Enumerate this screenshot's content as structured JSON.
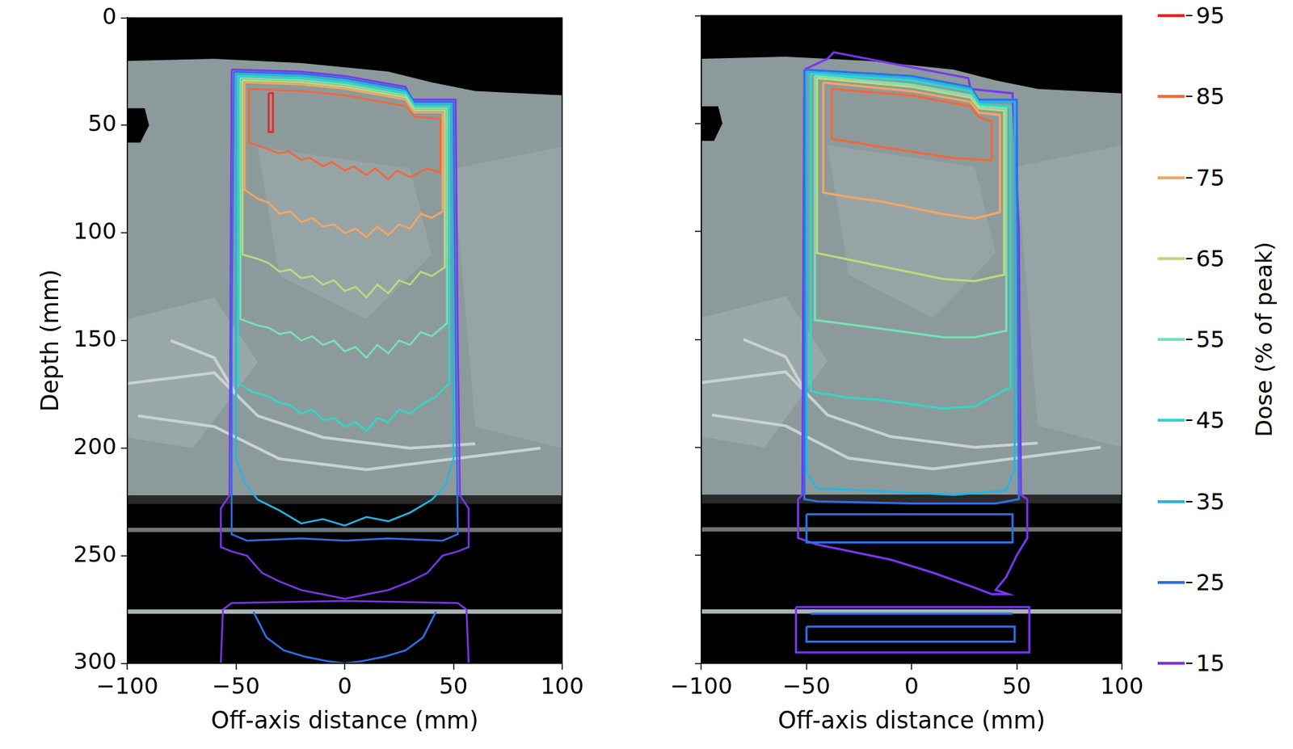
{
  "chart_data": [
    {
      "type": "line",
      "xlabel": "Off-axis distance (mm)",
      "ylabel": "Depth (mm)",
      "xlim": [
        -100,
        100
      ],
      "xticks": [
        {
          "value": -100,
          "label": "−100"
        },
        {
          "value": -50,
          "label": "−50"
        },
        0,
        50,
        100
      ],
      "ylim": [
        0,
        300
      ],
      "yticks": [
        0,
        50,
        100,
        150,
        200,
        250,
        300
      ],
      "grid": false,
      "series": [
        {
          "name": "95",
          "color": "#e8251f",
          "x": [
            -35,
            -33,
            -33,
            -35,
            -35
          ],
          "values": [
            35,
            35,
            53,
            53,
            35
          ]
        },
        {
          "name": "85",
          "color": "#f2673a",
          "x": [
            -44,
            -20,
            0,
            28,
            32,
            44,
            44,
            38,
            30,
            24,
            20,
            14,
            10,
            4,
            0,
            -6,
            -10,
            -16,
            -20,
            -26,
            -30,
            -38,
            -44,
            -44
          ],
          "values": [
            33,
            34,
            36,
            41,
            46,
            47,
            72,
            70,
            74,
            71,
            75,
            70,
            73,
            69,
            71,
            67,
            69,
            65,
            66,
            62,
            63,
            60,
            58,
            33
          ]
        },
        {
          "name": "75",
          "color": "#f9a55e",
          "x": [
            -46,
            -20,
            0,
            28,
            32,
            45,
            45,
            40,
            35,
            30,
            25,
            20,
            15,
            10,
            5,
            0,
            -5,
            -10,
            -15,
            -20,
            -25,
            -30,
            -35,
            -40,
            -46,
            -46
          ],
          "values": [
            30,
            31,
            33,
            38,
            44,
            44,
            90,
            93,
            91,
            98,
            96,
            101,
            97,
            102,
            98,
            100,
            96,
            97,
            93,
            95,
            90,
            91,
            86,
            84,
            80,
            30
          ]
        },
        {
          "name": "65",
          "color": "#bcdb7a",
          "x": [
            -47,
            -20,
            0,
            28,
            32,
            46,
            46,
            40,
            35,
            30,
            25,
            20,
            15,
            10,
            5,
            0,
            -5,
            -10,
            -15,
            -20,
            -25,
            -30,
            -35,
            -40,
            -47,
            -47
          ],
          "values": [
            29,
            30,
            32,
            37,
            43,
            43,
            116,
            120,
            118,
            124,
            122,
            128,
            124,
            130,
            125,
            127,
            122,
            124,
            120,
            121,
            117,
            118,
            114,
            112,
            110,
            29
          ]
        },
        {
          "name": "55",
          "color": "#76e3b3",
          "x": [
            -48,
            -20,
            0,
            28,
            32,
            47,
            47,
            40,
            35,
            30,
            25,
            20,
            15,
            10,
            5,
            0,
            -5,
            -10,
            -15,
            -20,
            -25,
            -30,
            -35,
            -40,
            -48,
            -48
          ],
          "values": [
            28,
            29,
            31,
            36,
            42,
            42,
            142,
            148,
            146,
            152,
            150,
            156,
            152,
            158,
            153,
            155,
            150,
            152,
            148,
            150,
            146,
            147,
            144,
            143,
            140,
            28
          ]
        },
        {
          "name": "45",
          "color": "#2ed8c8",
          "x": [
            -49,
            -20,
            0,
            28,
            32,
            48,
            48,
            42,
            35,
            30,
            25,
            20,
            15,
            10,
            5,
            0,
            -5,
            -10,
            -15,
            -20,
            -25,
            -30,
            -35,
            -42,
            -49,
            -49
          ],
          "values": [
            27,
            28,
            30,
            35,
            41,
            41,
            170,
            176,
            180,
            184,
            182,
            188,
            186,
            192,
            188,
            190,
            186,
            187,
            182,
            184,
            180,
            179,
            176,
            174,
            170,
            27
          ]
        },
        {
          "name": "35",
          "color": "#25b5e0",
          "x": [
            -50,
            -20,
            0,
            28,
            32,
            49,
            50,
            46,
            40,
            30,
            20,
            10,
            0,
            -10,
            -20,
            -30,
            -40,
            -46,
            -50,
            -50
          ],
          "values": [
            26,
            27,
            29,
            34,
            40,
            40,
            205,
            218,
            224,
            230,
            234,
            232,
            236,
            233,
            235,
            229,
            224,
            216,
            205,
            26
          ]
        },
        {
          "name": "25",
          "color": "#2f6fe6",
          "x": [
            -51,
            -20,
            0,
            28,
            32,
            50,
            51,
            52,
            45,
            20,
            0,
            -20,
            -45,
            -52,
            -52,
            -51,
            null,
            -42,
            -36,
            -28,
            -18,
            -8,
            0,
            8,
            18,
            28,
            36,
            42
          ],
          "values": [
            25,
            26,
            28,
            33,
            39,
            39,
            150,
            240,
            243,
            242,
            243,
            242,
            243,
            240,
            150,
            25,
            null,
            276,
            288,
            294,
            297,
            299,
            300,
            299,
            297,
            294,
            288,
            276
          ]
        },
        {
          "name": "15",
          "color": "#7a36f0",
          "x": [
            -52,
            -20,
            0,
            28,
            31,
            51,
            52,
            53,
            57,
            57,
            52,
            45,
            38,
            30,
            20,
            10,
            0,
            -10,
            -20,
            -30,
            -38,
            -45,
            -52,
            -57,
            -57,
            -53,
            -52,
            null,
            -57,
            -56,
            -52,
            0,
            52,
            56,
            57
          ],
          "values": [
            24,
            25,
            27,
            32,
            38,
            38,
            150,
            222,
            228,
            246,
            248,
            250,
            258,
            262,
            266,
            268,
            270,
            268,
            266,
            262,
            258,
            250,
            248,
            246,
            228,
            222,
            24,
            null,
            300,
            275,
            272,
            271,
            272,
            275,
            300
          ]
        }
      ]
    },
    {
      "type": "line",
      "xlabel": "Off-axis distance (mm)",
      "xlim": [
        -100,
        100
      ],
      "xticks": [
        {
          "value": -100,
          "label": "−100"
        },
        {
          "value": -50,
          "label": "−50"
        },
        0,
        50,
        100
      ],
      "ylim": [
        0,
        300
      ],
      "yticks": [
        0,
        50,
        100,
        150,
        200,
        250,
        300
      ],
      "tick_labels": "x",
      "grid": false,
      "series": [
        {
          "name": "85",
          "color": "#f2673a",
          "x": [
            -38,
            0,
            28,
            32,
            38,
            38,
            20,
            0,
            -20,
            -38,
            -38
          ],
          "values": [
            34,
            37,
            42,
            47,
            49,
            67,
            66,
            63,
            60,
            57,
            34
          ]
        },
        {
          "name": "75",
          "color": "#f9a55e",
          "x": [
            -42,
            0,
            28,
            32,
            42,
            42,
            30,
            15,
            0,
            -15,
            -30,
            -42,
            -42
          ],
          "values": [
            31,
            35,
            40,
            45,
            46,
            91,
            94,
            92,
            89,
            86,
            84,
            82,
            31
          ]
        },
        {
          "name": "65",
          "color": "#bcdb7a",
          "x": [
            -45,
            0,
            28,
            32,
            44,
            44,
            30,
            15,
            0,
            -15,
            -30,
            -45,
            -45
          ],
          "values": [
            29,
            33,
            38,
            43,
            44,
            120,
            123,
            122,
            119,
            116,
            113,
            110,
            29
          ]
        },
        {
          "name": "55",
          "color": "#76e3b3",
          "x": [
            -46,
            0,
            28,
            32,
            45,
            45,
            30,
            15,
            0,
            -15,
            -30,
            -46,
            -46
          ],
          "values": [
            28,
            32,
            37,
            42,
            43,
            146,
            149,
            149,
            147,
            145,
            143,
            141,
            28
          ]
        },
        {
          "name": "45",
          "color": "#2ed8c8",
          "x": [
            -48,
            0,
            28,
            32,
            47,
            47,
            30,
            15,
            0,
            -15,
            -30,
            -48,
            -48
          ],
          "values": [
            27,
            30,
            35,
            41,
            42,
            172,
            181,
            182,
            180,
            178,
            177,
            174,
            27
          ]
        },
        {
          "name": "35",
          "color": "#25b5e0",
          "x": [
            -50,
            0,
            28,
            32,
            49,
            49,
            45,
            20,
            0,
            -20,
            -45,
            -50,
            -50
          ],
          "values": [
            26,
            29,
            34,
            40,
            40,
            210,
            220,
            222,
            221,
            220,
            219,
            212,
            26
          ]
        },
        {
          "name": "25",
          "color": "#2f6fe6",
          "x": [
            -51,
            0,
            28,
            32,
            50,
            51,
            40,
            0,
            -45,
            -51,
            -51,
            null,
            -50,
            48,
            48,
            -50,
            -50,
            null,
            -50,
            49,
            49,
            -50,
            -50,
            null,
            -48,
            48
          ],
          "values": [
            25,
            28,
            33,
            39,
            39,
            224,
            226,
            226,
            225,
            224,
            25,
            null,
            231,
            231,
            244,
            244,
            231,
            null,
            283,
            283,
            290,
            290,
            283,
            null,
            277,
            277
          ]
        },
        {
          "name": "15",
          "color": "#7a36f0",
          "x": [
            -51,
            -40,
            -37,
            27,
            28,
            48,
            51,
            52,
            55,
            55,
            50,
            45,
            40,
            46,
            38,
            30,
            10,
            -10,
            -30,
            -45,
            -54,
            -54,
            -52,
            -51,
            null,
            -55,
            56,
            56,
            -55,
            -55
          ],
          "values": [
            25,
            20,
            17,
            29,
            34,
            36,
            100,
            222,
            224,
            242,
            250,
            260,
            266,
            268,
            268,
            265,
            258,
            252,
            248,
            245,
            242,
            224,
            222,
            25,
            null,
            274,
            274,
            295,
            295,
            274
          ]
        }
      ],
      "colorbar": {
        "label": "Dose (% of peak)",
        "range": [
          15,
          95
        ],
        "ticks": [
          15,
          25,
          35,
          45,
          55,
          65,
          75,
          85,
          95
        ],
        "colors": [
          "#7a36f0",
          "#2f6fe6",
          "#25b5e0",
          "#2ed8c8",
          "#76e3b3",
          "#bcdb7a",
          "#f9a55e",
          "#f2673a",
          "#e8251f"
        ]
      }
    }
  ]
}
